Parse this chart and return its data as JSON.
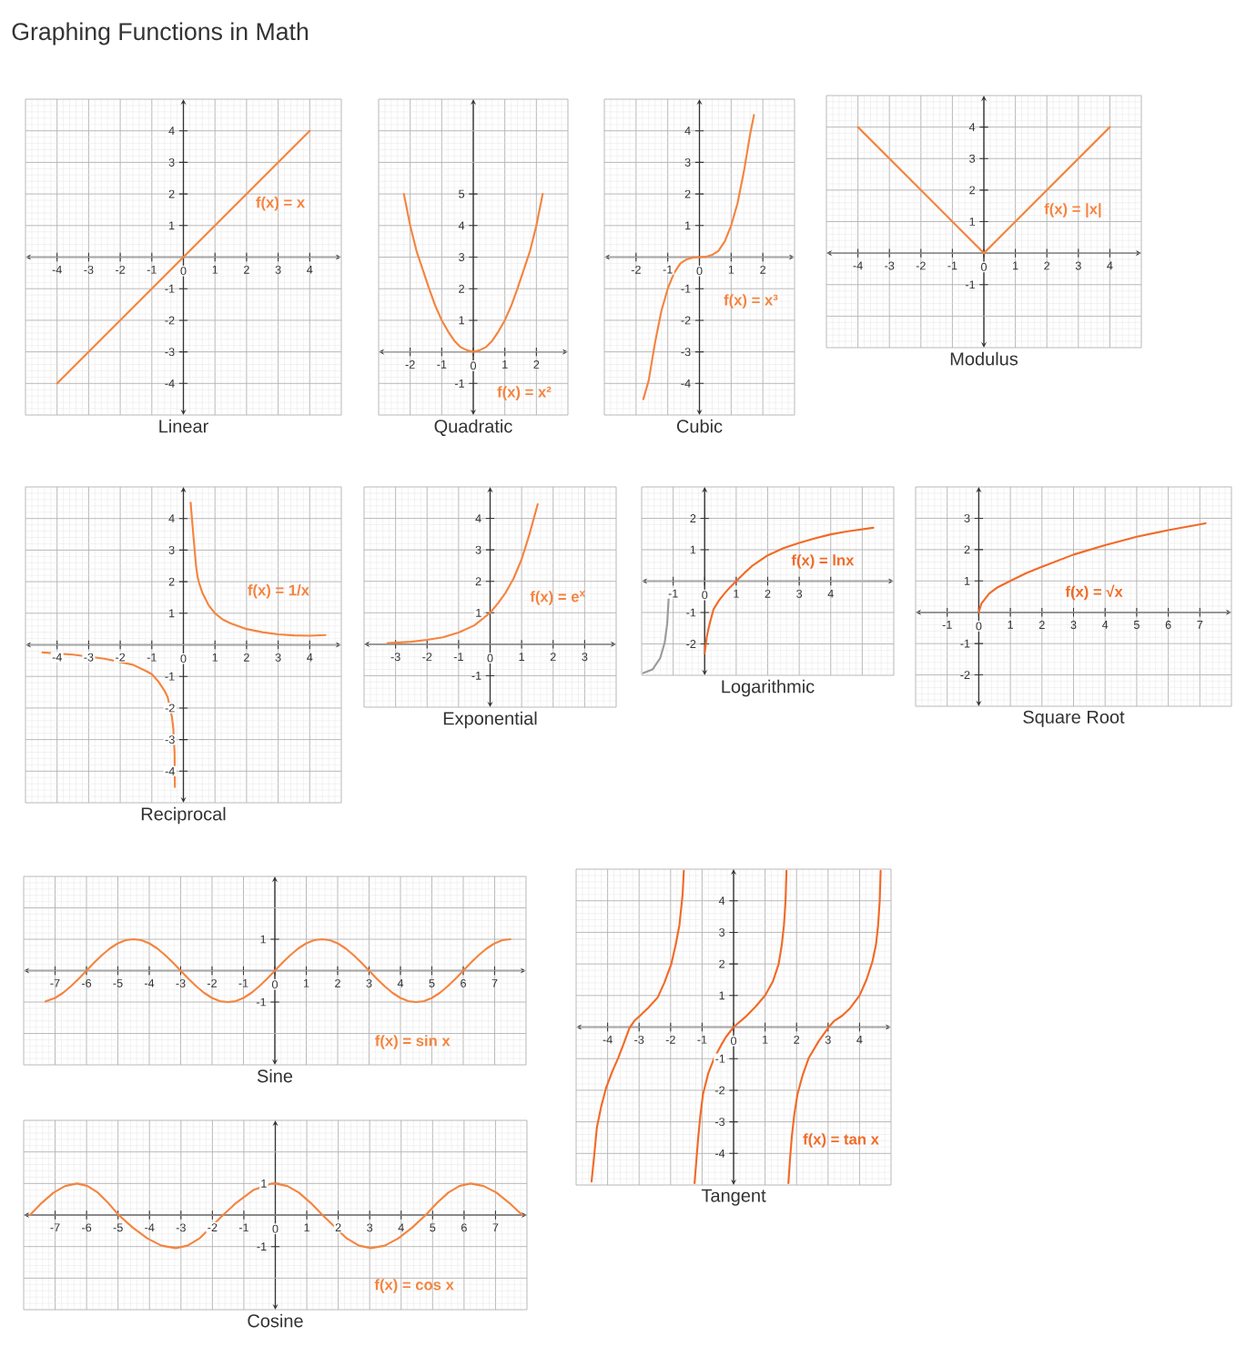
{
  "chart_data": [
    {
      "type": "other",
      "title": "Graphing Functions in Math"
    },
    {
      "type": "line",
      "title": "Linear",
      "x": [
        -4,
        4
      ],
      "series": [
        {
          "color": "#f5843f",
          "values": [
            -4,
            4
          ]
        }
      ],
      "xlim": [
        -5,
        5
      ],
      "ylim": [
        -5,
        5
      ],
      "xticks": [
        -4,
        -3,
        -2,
        -1,
        0,
        1,
        2,
        3,
        4
      ],
      "yticks": [
        -4,
        -3,
        -2,
        -1,
        1,
        2,
        3,
        4
      ],
      "grid": true,
      "annotations": [
        "f(x) = x"
      ]
    },
    {
      "type": "line",
      "title": "Quadratic",
      "x": [
        -2.2,
        -2,
        -1.8,
        -1.6,
        -1.4,
        -1.2,
        -1,
        -0.8,
        -0.6,
        -0.4,
        -0.2,
        0,
        0.2,
        0.4,
        0.6,
        0.8,
        1,
        1.2,
        1.4,
        1.6,
        1.8,
        2,
        2.2
      ],
      "series": [
        {
          "color": "#f5843f",
          "values": [
            5,
            4,
            3.2,
            2.6,
            2,
            1.45,
            1,
            0.65,
            0.35,
            0.15,
            0.05,
            0,
            0.05,
            0.15,
            0.35,
            0.65,
            1,
            1.45,
            2,
            2.6,
            3.2,
            4,
            5
          ]
        }
      ],
      "xlim": [
        -3,
        3
      ],
      "ylim": [
        -2,
        8
      ],
      "xticks": [
        -2,
        -1,
        0,
        1,
        2
      ],
      "yticks": [
        -1,
        1,
        2,
        3,
        4,
        5
      ],
      "grid": true,
      "annotations": [
        "f(x) = x²"
      ]
    },
    {
      "type": "line",
      "title": "Cubic",
      "x": [
        -1.77,
        -1.6,
        -1.4,
        -1.2,
        -1,
        -0.8,
        -0.6,
        -0.4,
        -0.2,
        0,
        0.2,
        0.4,
        0.6,
        0.8,
        1,
        1.2,
        1.4,
        1.6,
        1.72
      ],
      "series": [
        {
          "color": "#f5843f",
          "values": [
            -4.5,
            -3.9,
            -2.7,
            -1.7,
            -1,
            -0.5,
            -0.2,
            -0.07,
            -0.01,
            0,
            0.01,
            0.07,
            0.2,
            0.5,
            1,
            1.7,
            2.7,
            3.9,
            4.5
          ]
        }
      ],
      "xlim": [
        -3,
        3
      ],
      "ylim": [
        -5,
        5
      ],
      "xticks": [
        -2,
        -1,
        0,
        1,
        2
      ],
      "yticks": [
        -4,
        -3,
        -2,
        -1,
        1,
        2,
        3,
        4
      ],
      "grid": true,
      "annotations": [
        "f(x) = x³"
      ]
    },
    {
      "type": "line",
      "title": "Modulus",
      "x": [
        -4,
        0,
        4
      ],
      "series": [
        {
          "color": "#f5843f",
          "values": [
            4,
            0,
            4
          ]
        }
      ],
      "xlim": [
        -5,
        5
      ],
      "ylim": [
        -3,
        5
      ],
      "xticks": [
        -4,
        -3,
        -2,
        -1,
        0,
        1,
        2,
        3,
        4
      ],
      "yticks": [
        -1,
        1,
        2,
        3,
        4
      ],
      "grid": true,
      "annotations": [
        "f(x) = |x|"
      ]
    },
    {
      "type": "line",
      "title": "Reciprocal",
      "series": [
        {
          "color": "#f5843f",
          "x": [
            -4.46,
            -3.5,
            -2.5,
            -1.6,
            -1.2,
            -1,
            -0.8,
            -0.6,
            -0.5,
            -0.36,
            -0.32,
            -0.28,
            -0.27
          ],
          "values": [
            -0.24,
            -0.31,
            -0.44,
            -0.63,
            -0.82,
            -0.93,
            -1.15,
            -1.45,
            -1.65,
            -2.3,
            -2.65,
            -3.4,
            -4.5
          ]
        },
        {
          "color": "#f5843f",
          "x": [
            0.23,
            0.27,
            0.33,
            0.4,
            0.45,
            0.5,
            0.6,
            0.8,
            1,
            1.25,
            1.5,
            2,
            2.5,
            3,
            3.5,
            4,
            4.5
          ],
          "values": [
            4.5,
            4,
            3.3,
            2.5,
            2.15,
            1.95,
            1.65,
            1.25,
            1,
            0.8,
            0.68,
            0.5,
            0.4,
            0.33,
            0.3,
            0.29,
            0.31
          ]
        }
      ],
      "xlim": [
        -5,
        5
      ],
      "ylim": [
        -5,
        5
      ],
      "xticks": [
        -4,
        -3,
        -2,
        -1,
        0,
        1,
        2,
        3,
        4
      ],
      "yticks": [
        -4,
        -3,
        -2,
        -1,
        1,
        2,
        3,
        4
      ],
      "grid": true,
      "annotations": [
        "f(x) = 1/x"
      ]
    },
    {
      "type": "line",
      "title": "Exponential",
      "x": [
        -3.25,
        -3,
        -2.5,
        -2,
        -1.5,
        -1,
        -0.5,
        0,
        0.25,
        0.5,
        0.75,
        1,
        1.25,
        1.51
      ],
      "series": [
        {
          "color": "#f5843f",
          "values": [
            0.04,
            0.05,
            0.08,
            0.14,
            0.22,
            0.37,
            0.6,
            1,
            1.3,
            1.65,
            2.1,
            2.7,
            3.5,
            4.45
          ]
        }
      ],
      "xlim": [
        -4,
        4
      ],
      "ylim": [
        -2,
        5
      ],
      "xticks": [
        -3,
        -2,
        -1,
        0,
        1,
        2,
        3
      ],
      "yticks": [
        -1,
        1,
        2,
        3,
        4
      ],
      "grid": true,
      "annotations": [
        "f(x) = e$^{x}$"
      ]
    },
    {
      "type": "line",
      "title": "Logarithmic",
      "series": [
        {
          "color": "#f26a26",
          "x": [
            0,
            0.07,
            0.16,
            0.28,
            0.45,
            0.64,
            0.8,
            1,
            1.25,
            1.5,
            2,
            2.5,
            3,
            3.5,
            4,
            4.5,
            5.35
          ],
          "values": [
            -2.3,
            -1.75,
            -1.35,
            -0.9,
            -0.62,
            -0.38,
            -0.2,
            0,
            0.25,
            0.48,
            0.82,
            1.05,
            1.22,
            1.36,
            1.49,
            1.58,
            1.7
          ]
        },
        {
          "color": "#9a9a9a",
          "x": [
            -1.95,
            -1.65,
            -1.41,
            -1.27,
            -1.19,
            -1.14
          ],
          "values": [
            -2.93,
            -2.81,
            -2.45,
            -1.96,
            -1.36,
            -0.5
          ]
        }
      ],
      "xlim": [
        -2,
        6
      ],
      "ylim": [
        -3,
        3
      ],
      "xticks": [
        -1,
        0,
        1,
        2,
        3,
        4
      ],
      "yticks": [
        -2,
        -1,
        1,
        2
      ],
      "grid": true,
      "annotations": [
        "f(x) = lnx"
      ]
    },
    {
      "type": "line",
      "title": "Square Root",
      "x": [
        0,
        0.08,
        0.33,
        0.6,
        1,
        1.5,
        2,
        3,
        4,
        5,
        6,
        7.18
      ],
      "series": [
        {
          "color": "#f26a26",
          "values": [
            0,
            0.27,
            0.6,
            0.8,
            1,
            1.25,
            1.45,
            1.84,
            2.14,
            2.41,
            2.62,
            2.84
          ]
        }
      ],
      "xlim": [
        -2,
        8
      ],
      "ylim": [
        -3,
        4
      ],
      "xticks": [
        -1,
        0,
        1,
        2,
        3,
        4,
        5,
        6,
        7
      ],
      "yticks": [
        -2,
        -1,
        1,
        2,
        3
      ],
      "grid": true,
      "annotations": [
        "f(x) = √x"
      ]
    },
    {
      "type": "line",
      "title": "Sine",
      "x": [
        -7.3,
        -7,
        -6.75,
        -6.5,
        -6.25,
        -6,
        -5.75,
        -5.5,
        -5.25,
        -5,
        -4.75,
        -4.5,
        -4.25,
        -4,
        -3.75,
        -3.5,
        -3.25,
        -3,
        -2.75,
        -2.5,
        -2.25,
        -2,
        -1.75,
        -1.5,
        -1.25,
        -1,
        -0.75,
        -0.5,
        -0.25,
        0,
        0.25,
        0.5,
        0.75,
        1,
        1.25,
        1.5,
        1.75,
        2,
        2.25,
        2.5,
        2.75,
        3,
        3.25,
        3.5,
        3.75,
        4,
        4.25,
        4.5,
        4.75,
        5,
        5.25,
        5.5,
        5.75,
        6,
        6.25,
        6.5,
        6.75,
        7,
        7.25,
        7.5
      ],
      "series": [
        {
          "color": "#f5843f",
          "values": [
            -0.98,
            -0.87,
            -0.71,
            -0.5,
            -0.26,
            0,
            0.26,
            0.5,
            0.71,
            0.87,
            0.97,
            1,
            0.97,
            0.87,
            0.71,
            0.5,
            0.26,
            0,
            -0.26,
            -0.5,
            -0.71,
            -0.87,
            -0.97,
            -1,
            -0.97,
            -0.87,
            -0.71,
            -0.5,
            -0.26,
            0,
            0.26,
            0.5,
            0.71,
            0.87,
            0.97,
            1,
            0.97,
            0.87,
            0.71,
            0.5,
            0.26,
            0,
            -0.26,
            -0.5,
            -0.71,
            -0.87,
            -0.97,
            -1,
            -0.97,
            -0.87,
            -0.71,
            -0.5,
            -0.26,
            0,
            0.26,
            0.5,
            0.71,
            0.87,
            0.97,
            1
          ]
        }
      ],
      "xlim": [
        -8,
        8
      ],
      "ylim": [
        -3,
        3
      ],
      "xticks": [
        -7,
        -6,
        -5,
        -4,
        -3,
        -2,
        -1,
        0,
        1,
        2,
        3,
        4,
        5,
        6,
        7
      ],
      "yticks": [
        -1,
        1
      ],
      "grid": true,
      "annotations": [
        "f(x) = sin x"
      ]
    },
    {
      "type": "line",
      "title": "Cosine",
      "x": [
        -7.8,
        -7.43,
        -7.05,
        -6.68,
        -6.3,
        -5.97,
        -5.64,
        -5.31,
        -4.98,
        -4.53,
        -4.07,
        -3.62,
        -3.16,
        -2.79,
        -2.41,
        -1.66,
        -1.25,
        -0.7,
        -0.15,
        0,
        0.38,
        0.75,
        1.13,
        1.5,
        2.27,
        2.66,
        3.04,
        3.48,
        3.91,
        4.35,
        4.78,
        5.14,
        5.5,
        5.85,
        6.21,
        6.62,
        7.03,
        7.44,
        7.85
      ],
      "series": [
        {
          "color": "#f5843f",
          "values": [
            0,
            0.38,
            0.71,
            0.92,
            1,
            0.92,
            0.71,
            0.38,
            0,
            -0.4,
            -0.74,
            -0.97,
            -1.05,
            -0.97,
            -0.74,
            0,
            0.38,
            0.79,
            0.99,
            1,
            0.92,
            0.71,
            0.38,
            0,
            -0.74,
            -0.97,
            -1.05,
            -0.97,
            -0.74,
            -0.4,
            0,
            0.38,
            0.71,
            0.92,
            1,
            0.92,
            0.71,
            0.38,
            0
          ]
        }
      ],
      "xlim": [
        -8,
        8
      ],
      "ylim": [
        -3,
        3
      ],
      "xticks": [
        -7,
        -6,
        -5,
        -4,
        -3,
        -2,
        -1,
        0,
        1,
        2,
        3,
        4,
        5,
        6,
        7
      ],
      "yticks": [
        -1,
        1
      ],
      "grid": true,
      "annotations": [
        "f(x) = cos x"
      ]
    },
    {
      "type": "line",
      "title": "Tangent",
      "series": [
        {
          "color": "#f26a26",
          "x": [
            -4.51,
            -4.42,
            -4.34,
            -4.2,
            -4.05,
            -3.85,
            -3.66,
            -3.48,
            -3.31,
            -3.15,
            -2.97,
            -2.7,
            -2.41,
            -2.2,
            -1.98,
            -1.84,
            -1.72,
            -1.62,
            -1.58
          ],
          "values": [
            -4.89,
            -4,
            -3.17,
            -2.5,
            -1.93,
            -1.4,
            -0.97,
            -0.5,
            -0.04,
            0.2,
            0.36,
            0.62,
            0.94,
            1.4,
            1.99,
            2.6,
            3.23,
            4.18,
            4.95
          ]
        },
        {
          "color": "#f26a26",
          "x": [
            -1.24,
            -1.18,
            -1.12,
            -1.05,
            -0.97,
            -0.8,
            -0.61,
            -0.4,
            -0.24,
            0,
            0.375,
            0.7,
            1,
            1.25,
            1.43,
            1.53,
            1.6,
            1.65,
            1.68
          ],
          "values": [
            -4.94,
            -4.2,
            -3.46,
            -2.75,
            -2.12,
            -1.45,
            -0.97,
            -0.58,
            -0.31,
            0,
            0.32,
            0.65,
            1,
            1.45,
            1.99,
            2.6,
            3.23,
            4,
            4.95
          ]
        },
        {
          "color": "#f26a26",
          "x": [
            1.74,
            1.79,
            1.85,
            1.93,
            2.03,
            2.2,
            2.39,
            2.7,
            3.02,
            3.2,
            3.45,
            3.7,
            4,
            4.22,
            4.41,
            4.52,
            4.59,
            4.64,
            4.67
          ],
          "values": [
            -4.94,
            -4.2,
            -3.46,
            -2.75,
            -2.12,
            -1.5,
            -0.97,
            -0.45,
            0,
            0.2,
            0.36,
            0.6,
            1,
            1.5,
            2.08,
            2.6,
            3.23,
            4,
            4.95
          ]
        }
      ],
      "xlim": [
        -5,
        5
      ],
      "ylim": [
        -5,
        5
      ],
      "xticks": [
        -4,
        -3,
        -2,
        -1,
        0,
        1,
        2,
        3,
        4
      ],
      "yticks": [
        -4,
        -3,
        -2,
        -1,
        1,
        2,
        3,
        4
      ],
      "grid": true,
      "annotations": [
        "f(x) = tan x"
      ]
    }
  ]
}
